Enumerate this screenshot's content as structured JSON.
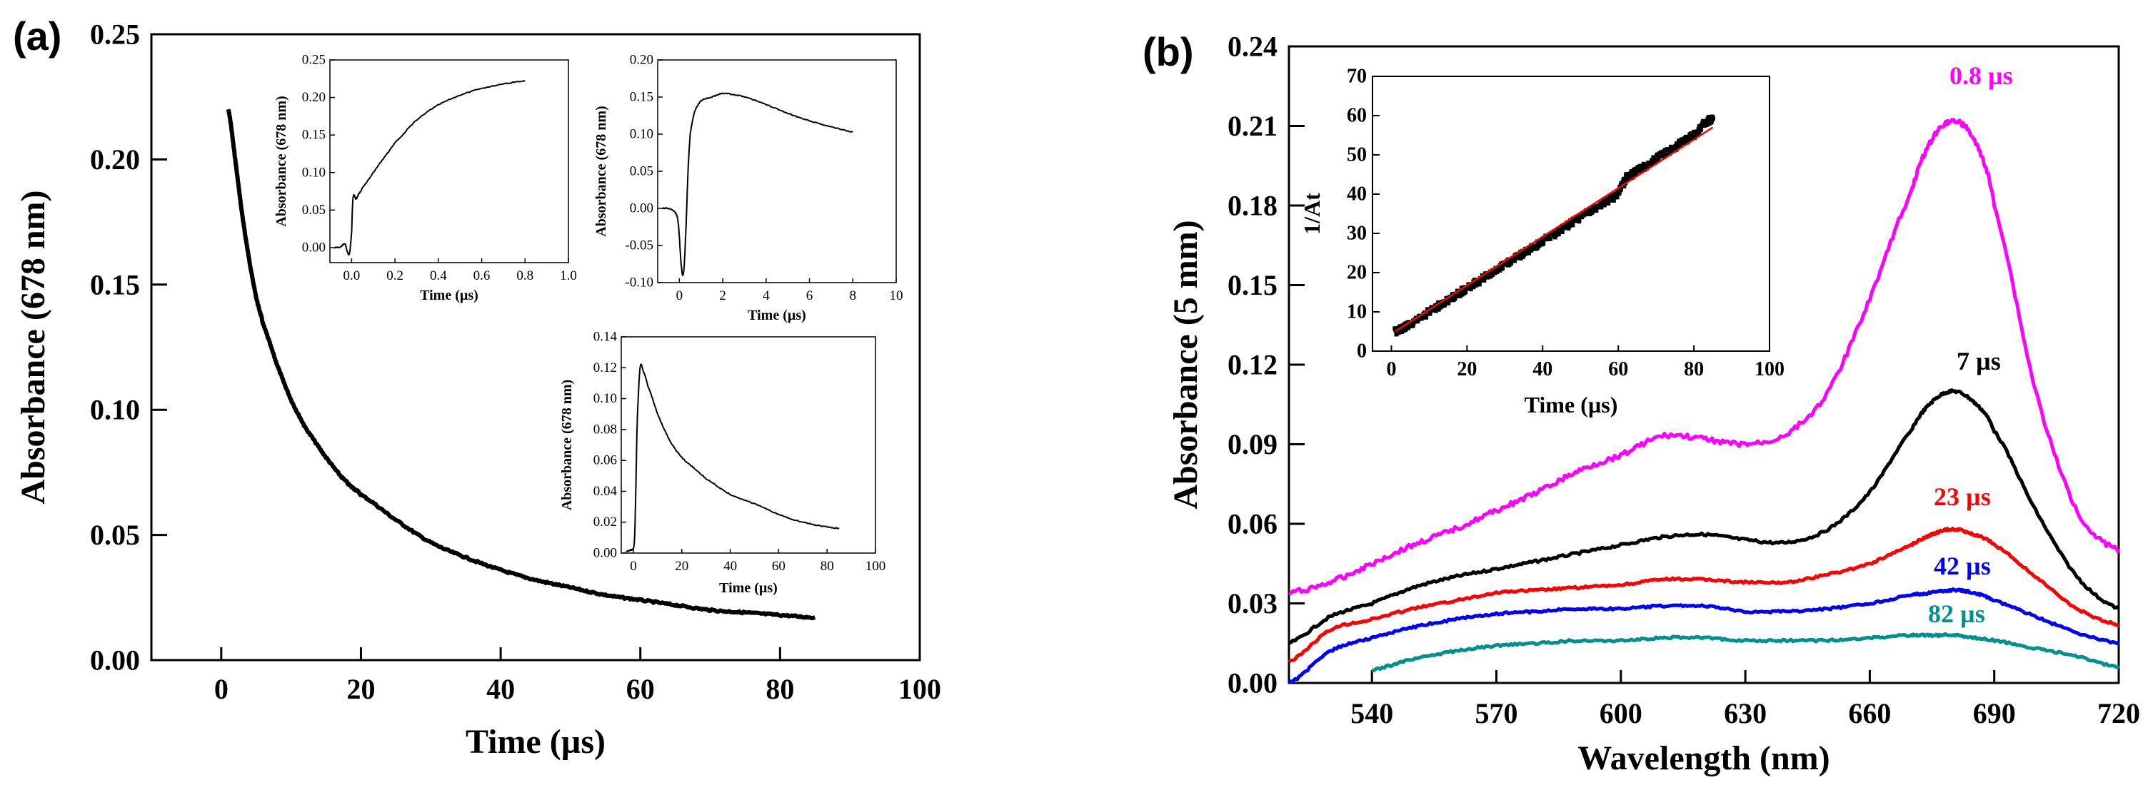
{
  "panels": {
    "a": "(a)",
    "b": "(b)"
  },
  "chart_data": [
    {
      "id": "a-main",
      "type": "line",
      "xlabel": "Time (µs)",
      "ylabel": "Absorbance (678 nm)",
      "xlim": [
        -10,
        100
      ],
      "ylim": [
        0,
        0.25
      ],
      "xticks": [
        0,
        20,
        40,
        60,
        80,
        100
      ],
      "yticks": [
        0.0,
        0.05,
        0.1,
        0.15,
        0.2,
        0.25
      ],
      "xtick_labels": [
        "0",
        "20",
        "40",
        "60",
        "80",
        "100"
      ],
      "ytick_labels": [
        "0.00",
        "0.05",
        "0.10",
        "0.15",
        "0.20",
        "0.25"
      ],
      "color": "#000000",
      "series": [
        {
          "x": [
            1,
            2,
            3,
            4,
            5,
            6,
            8,
            10,
            12,
            15,
            18,
            20,
            25,
            30,
            35,
            40,
            45,
            50,
            55,
            60,
            65,
            70,
            75,
            80,
            85
          ],
          "y": [
            0.22,
            0.2,
            0.178,
            0.16,
            0.145,
            0.134,
            0.118,
            0.104,
            0.093,
            0.081,
            0.071,
            0.066,
            0.056,
            0.047,
            0.041,
            0.036,
            0.032,
            0.029,
            0.026,
            0.024,
            0.022,
            0.02,
            0.019,
            0.018,
            0.017
          ]
        }
      ]
    },
    {
      "id": "a-inset1",
      "type": "line",
      "xlabel": "Time (µs)",
      "ylabel": "Absorbance (678 nm)",
      "xlim": [
        -0.1,
        1.0
      ],
      "ylim": [
        -0.02,
        0.25
      ],
      "xticks": [
        0.0,
        0.2,
        0.4,
        0.6,
        0.8,
        1.0
      ],
      "yticks": [
        0.0,
        0.05,
        0.1,
        0.15,
        0.2,
        0.25
      ],
      "xtick_labels": [
        "0.0",
        "0.2",
        "0.4",
        "0.6",
        "0.8",
        "1.0"
      ],
      "ytick_labels": [
        "0.00",
        "0.05",
        "0.10",
        "0.15",
        "0.20",
        "0.25"
      ],
      "color": "#000000",
      "series": [
        {
          "x": [
            -0.08,
            -0.05,
            -0.03,
            -0.02,
            -0.01,
            0.0,
            0.005,
            0.01,
            0.02,
            0.03,
            0.05,
            0.1,
            0.15,
            0.2,
            0.3,
            0.4,
            0.5,
            0.6,
            0.7,
            0.8
          ],
          "y": [
            0.0,
            0.001,
            0.005,
            -0.005,
            -0.008,
            0.02,
            0.06,
            0.07,
            0.065,
            0.07,
            0.08,
            0.1,
            0.12,
            0.14,
            0.17,
            0.19,
            0.203,
            0.212,
            0.218,
            0.222
          ]
        }
      ]
    },
    {
      "id": "a-inset2",
      "type": "line",
      "xlabel": "Time (µs)",
      "ylabel": "Absorbance (678 nm)",
      "xlim": [
        -1,
        10
      ],
      "ylim": [
        -0.1,
        0.2
      ],
      "xticks": [
        0,
        2,
        4,
        6,
        8,
        10
      ],
      "yticks": [
        -0.1,
        -0.05,
        0.0,
        0.05,
        0.1,
        0.15,
        0.2
      ],
      "xtick_labels": [
        "0",
        "2",
        "4",
        "6",
        "8",
        "10"
      ],
      "ytick_labels": [
        "-0.10",
        "-0.05",
        "0.00",
        "0.05",
        "0.10",
        "0.15",
        "0.20"
      ],
      "color": "#000000",
      "series": [
        {
          "x": [
            -0.8,
            -0.5,
            -0.2,
            -0.05,
            0.1,
            0.2,
            0.3,
            0.4,
            0.5,
            0.7,
            1.0,
            1.5,
            2,
            2.5,
            3,
            4,
            5,
            6,
            7,
            8
          ],
          "y": [
            0.0,
            0.0,
            -0.005,
            -0.02,
            -0.08,
            -0.085,
            -0.03,
            0.05,
            0.1,
            0.13,
            0.145,
            0.15,
            0.155,
            0.153,
            0.15,
            0.14,
            0.128,
            0.118,
            0.11,
            0.103
          ]
        }
      ]
    },
    {
      "id": "a-inset3",
      "type": "line",
      "xlabel": "Time (µs)",
      "ylabel": "Absorbance (678 nm)",
      "xlim": [
        -5,
        100
      ],
      "ylim": [
        0,
        0.14
      ],
      "xticks": [
        0,
        20,
        40,
        60,
        80,
        100
      ],
      "yticks": [
        0.0,
        0.02,
        0.04,
        0.06,
        0.08,
        0.1,
        0.12,
        0.14
      ],
      "xtick_labels": [
        "0",
        "20",
        "40",
        "60",
        "80",
        "100"
      ],
      "ytick_labels": [
        "0.00",
        "0.02",
        "0.04",
        "0.06",
        "0.08",
        "0.10",
        "0.12",
        "0.14"
      ],
      "color": "#000000",
      "series": [
        {
          "x": [
            -3,
            -1,
            0.0,
            0.5,
            1,
            1.5,
            2,
            2.5,
            3,
            4,
            6,
            10,
            15,
            20,
            25,
            30,
            40,
            50,
            60,
            70,
            80,
            85
          ],
          "y": [
            0.001,
            0.002,
            0.003,
            0.01,
            0.04,
            0.08,
            0.1,
            0.115,
            0.122,
            0.118,
            0.108,
            0.09,
            0.073,
            0.062,
            0.055,
            0.048,
            0.038,
            0.032,
            0.025,
            0.02,
            0.017,
            0.016
          ]
        }
      ]
    },
    {
      "id": "b-main",
      "type": "line",
      "xlabel": "Wavelength (nm)",
      "ylabel": "Absorbance (5 mm)",
      "xlim": [
        520,
        720
      ],
      "ylim": [
        0,
        0.24
      ],
      "xticks": [
        540,
        570,
        600,
        630,
        660,
        690,
        720
      ],
      "yticks": [
        0.0,
        0.03,
        0.06,
        0.09,
        0.12,
        0.15,
        0.18,
        0.21,
        0.24
      ],
      "xtick_labels": [
        "540",
        "570",
        "600",
        "630",
        "660",
        "690",
        "720"
      ],
      "ytick_labels": [
        "0.00",
        "0.03",
        "0.06",
        "0.09",
        "0.12",
        "0.15",
        "0.18",
        "0.21",
        "0.24"
      ],
      "x": [
        520,
        530,
        540,
        550,
        560,
        570,
        580,
        590,
        600,
        610,
        620,
        630,
        640,
        650,
        660,
        670,
        675,
        680,
        685,
        690,
        700,
        710,
        720
      ],
      "series": [
        {
          "name": "0.8 µs",
          "color": "#ff00ff",
          "values": [
            0.034,
            0.038,
            0.045,
            0.052,
            0.058,
            0.065,
            0.072,
            0.08,
            0.086,
            0.093,
            0.092,
            0.09,
            0.094,
            0.11,
            0.145,
            0.185,
            0.205,
            0.212,
            0.205,
            0.18,
            0.11,
            0.065,
            0.05
          ]
        },
        {
          "name": "7 µs",
          "color": "#000000",
          "values": [
            0.015,
            0.025,
            0.03,
            0.036,
            0.04,
            0.043,
            0.046,
            0.049,
            0.052,
            0.055,
            0.056,
            0.054,
            0.053,
            0.058,
            0.072,
            0.095,
            0.106,
            0.11,
            0.106,
            0.095,
            0.065,
            0.04,
            0.028
          ]
        },
        {
          "name": "23 µs",
          "color": "#ff0000",
          "values": [
            0.008,
            0.02,
            0.024,
            0.028,
            0.031,
            0.034,
            0.035,
            0.036,
            0.037,
            0.039,
            0.039,
            0.038,
            0.038,
            0.041,
            0.045,
            0.052,
            0.056,
            0.058,
            0.056,
            0.052,
            0.04,
            0.028,
            0.022
          ]
        },
        {
          "name": "42 µs",
          "color": "#0000ff",
          "values": [
            0.0,
            0.012,
            0.017,
            0.021,
            0.024,
            0.026,
            0.027,
            0.028,
            0.028,
            0.029,
            0.029,
            0.027,
            0.027,
            0.028,
            0.03,
            0.033,
            0.034,
            0.035,
            0.034,
            0.031,
            0.025,
            0.019,
            0.015
          ]
        },
        {
          "name": "82 µs",
          "color": "#009090",
          "values": [
            null,
            null,
            0.005,
            0.009,
            0.012,
            0.014,
            0.015,
            0.016,
            0.016,
            0.017,
            0.017,
            0.016,
            0.016,
            0.016,
            0.017,
            0.018,
            0.018,
            0.018,
            0.017,
            0.016,
            0.013,
            0.01,
            0.006
          ]
        }
      ]
    },
    {
      "id": "b-inset",
      "type": "scatter",
      "xlabel": "Time (µs)",
      "ylabel": "1/At",
      "xlim": [
        -5,
        100
      ],
      "ylim": [
        0,
        70
      ],
      "xticks": [
        0,
        20,
        40,
        60,
        80,
        100
      ],
      "yticks": [
        0,
        10,
        20,
        30,
        40,
        50,
        60,
        70
      ],
      "xtick_labels": [
        "0",
        "20",
        "40",
        "60",
        "80",
        "100"
      ],
      "ytick_labels": [
        "0",
        "10",
        "20",
        "30",
        "40",
        "50",
        "60",
        "70"
      ],
      "data_color": "#000000",
      "fit_color": "#ff0000",
      "series": [
        {
          "x": [
            1,
            5,
            10,
            15,
            20,
            25,
            30,
            35,
            40,
            45,
            50,
            55,
            60,
            62,
            65,
            70,
            75,
            80,
            83,
            85
          ],
          "y": [
            5,
            7,
            10,
            13,
            16,
            19,
            22,
            25,
            28,
            31,
            34,
            37,
            40,
            44,
            46,
            49,
            52,
            55,
            58,
            59
          ]
        }
      ],
      "fit": {
        "x": [
          1,
          85
        ],
        "y": [
          5,
          57
        ]
      }
    }
  ]
}
